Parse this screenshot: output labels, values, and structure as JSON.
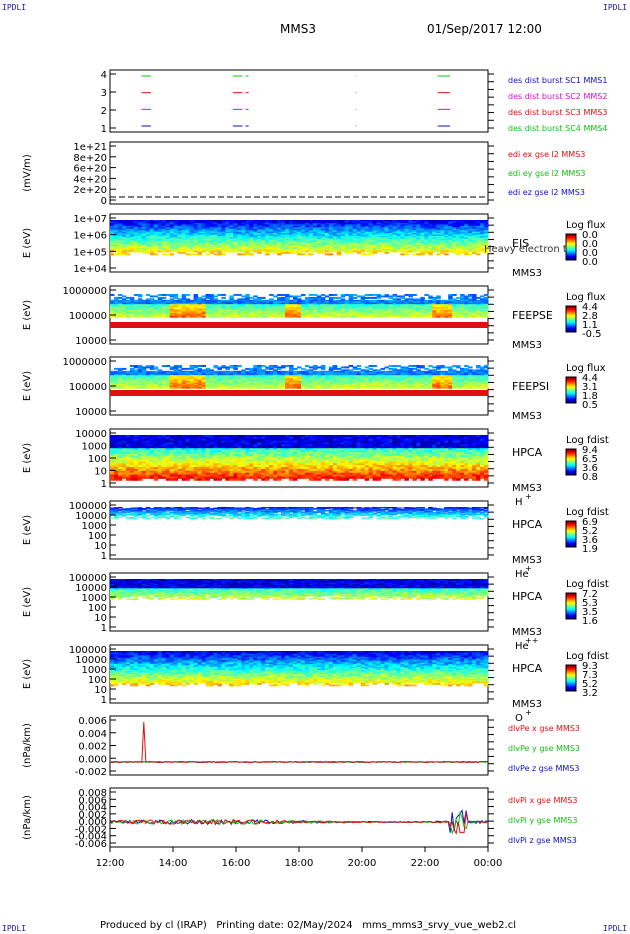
{
  "corner_label": "IPDLI",
  "title": "MMS3",
  "date": "01/Sep/2017 12:00",
  "footer": "Produced by cl (IRAP)   Printing date: 02/May/2024   mms_mms3_srvy_vue_web2.cl",
  "colors": {
    "red": "#e01010",
    "magenta": "#d010d0",
    "green": "#10c010",
    "blue": "#1010c0"
  },
  "chart_data": [
    {
      "type": "scatter",
      "ylabel": "",
      "ylim": [
        0.5,
        4.5
      ],
      "yticks": [
        "4",
        "3",
        "2",
        "1"
      ],
      "legend": [
        "des dist burst SC1 MMS1",
        "des dist burst SC2 MMS2",
        "des dist burst SC3 MMS3",
        "des dist burst SC4 MMS4"
      ],
      "legend_colors": [
        "#1010c0",
        "#d010d0",
        "#e01010",
        "#10c010"
      ],
      "intervals_hours": [
        [
          13.0,
          13.3
        ],
        [
          15.9,
          16.2
        ],
        [
          16.3,
          16.4
        ],
        [
          19.8,
          19.82
        ],
        [
          22.4,
          22.8
        ]
      ]
    },
    {
      "type": "line",
      "ylabel": "(mV/m)",
      "yticks": [
        "1e+21",
        "8e+20",
        "6e+20",
        "4e+20",
        "2e+20",
        "0"
      ],
      "legend": [
        "edi ex gse l2 MMS3",
        "edi ey gse l2 MMS3",
        "edi ez gse l2 MMS3"
      ],
      "legend_colors": [
        "#e01010",
        "#10c010",
        "#1010c0"
      ]
    },
    {
      "type": "heatmap",
      "ylabel": "E (eV)",
      "yticks": [
        "1e+07",
        "1e+06",
        "1e+05",
        "1e+04"
      ],
      "instrument": "EIS",
      "sub": "MMS3",
      "overlay": "Heavy electron tof",
      "cbar_title": "Log flux",
      "cbar_ticks": [
        "0.0",
        "0.0",
        "0.0",
        "0.0"
      ]
    },
    {
      "type": "heatmap",
      "ylabel": "E (eV)",
      "yticks": [
        "1000000",
        "100000",
        "10000"
      ],
      "instrument": "FEEPSE",
      "sub": "MMS3",
      "cbar_title": "Log flux",
      "cbar_ticks": [
        "4.4",
        "2.8",
        "1.1",
        "-0.5"
      ]
    },
    {
      "type": "heatmap",
      "ylabel": "E (eV)",
      "yticks": [
        "1000000",
        "100000",
        "10000"
      ],
      "instrument": "FEEPSI",
      "sub": "MMS3",
      "cbar_title": "Log flux",
      "cbar_ticks": [
        "4.4",
        "3.1",
        "1.8",
        "0.5"
      ]
    },
    {
      "type": "heatmap",
      "ylabel": "E (eV)",
      "yticks": [
        "10000",
        "1000",
        "100",
        "10",
        "1"
      ],
      "instrument": "HPCA",
      "sub": "MMS3",
      "species": "H",
      "charge": "+",
      "cbar_title": "Log fdist",
      "cbar_ticks": [
        "9.4",
        "6.5",
        "3.6",
        "0.8"
      ]
    },
    {
      "type": "heatmap",
      "ylabel": "E (eV)",
      "yticks": [
        "100000",
        "10000",
        "1000",
        "100",
        "10",
        "1"
      ],
      "instrument": "HPCA",
      "sub": "MMS3",
      "species": "He",
      "charge": "+",
      "cbar_title": "Log fdist",
      "cbar_ticks": [
        "6.9",
        "5.2",
        "3.6",
        "1.9"
      ]
    },
    {
      "type": "heatmap",
      "ylabel": "E (eV)",
      "yticks": [
        "100000",
        "10000",
        "1000",
        "100",
        "10",
        "1"
      ],
      "instrument": "HPCA",
      "sub": "MMS3",
      "species": "He",
      "charge": "++",
      "cbar_title": "Log fdist",
      "cbar_ticks": [
        "7.2",
        "5.3",
        "3.5",
        "1.6"
      ]
    },
    {
      "type": "heatmap",
      "ylabel": "E (eV)",
      "yticks": [
        "100000",
        "10000",
        "1000",
        "100",
        "10",
        "1"
      ],
      "instrument": "HPCA",
      "sub": "MMS3",
      "species": "O",
      "charge": "+",
      "cbar_title": "Log fdist",
      "cbar_ticks": [
        "9.3",
        "7.3",
        "5.2",
        "3.2"
      ]
    },
    {
      "type": "line",
      "ylabel": "(nPa/km)",
      "ylim": [
        -0.002,
        0.007
      ],
      "yticks": [
        "0.006",
        "0.004",
        "0.002",
        "0.000",
        "-0.002"
      ],
      "legend": [
        "dlvPe x gse MMS3",
        "dlvPe y gse MMS3",
        "dlvPe z gse MMS3"
      ],
      "legend_colors": [
        "#e01010",
        "#10c010",
        "#1010c0"
      ]
    },
    {
      "type": "line",
      "ylabel": "(nPa/km)",
      "ylim": [
        -0.006,
        0.008
      ],
      "yticks": [
        "0.008",
        "0.006",
        "0.004",
        "0.002",
        "0.000",
        "-0.002",
        "-0.004",
        "-0.006"
      ],
      "legend": [
        "dlvPi x gse MMS3",
        "dlvPi y gse MMS3",
        "dlvPi z gse MMS3"
      ],
      "legend_colors": [
        "#e01010",
        "#10c010",
        "#1010c0"
      ]
    }
  ],
  "xaxis": {
    "ticks": [
      "12:00",
      "14:00",
      "16:00",
      "18:00",
      "20:00",
      "22:00",
      "00:00"
    ],
    "range_hours": [
      12,
      24
    ]
  }
}
